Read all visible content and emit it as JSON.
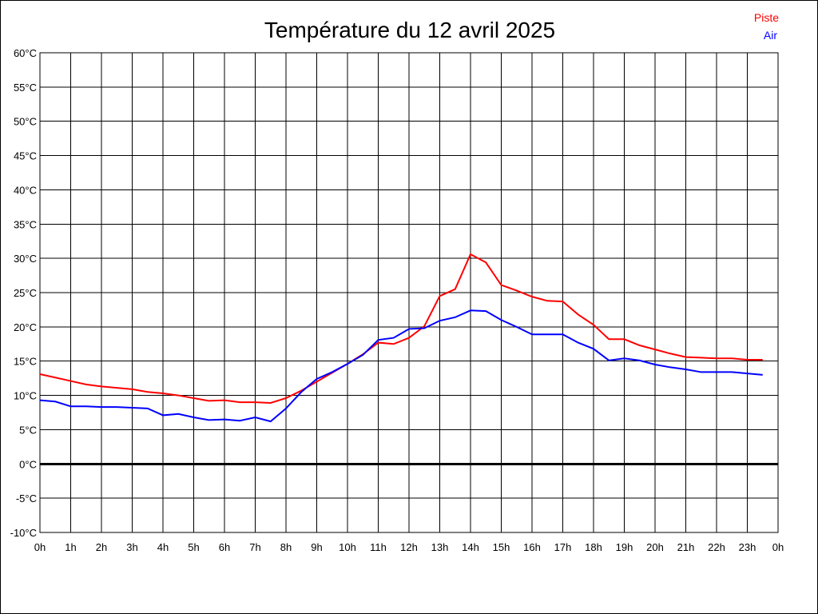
{
  "chart_data": {
    "type": "line",
    "title": "Température du 12 avril 2025",
    "xlabel": "",
    "ylabel": "",
    "x_ticks": [
      "0h",
      "1h",
      "2h",
      "3h",
      "4h",
      "5h",
      "6h",
      "7h",
      "8h",
      "9h",
      "10h",
      "11h",
      "12h",
      "13h",
      "14h",
      "15h",
      "16h",
      "17h",
      "18h",
      "19h",
      "20h",
      "21h",
      "22h",
      "23h",
      "0h"
    ],
    "y_ticks": [
      "60°C",
      "55°C",
      "50°C",
      "45°C",
      "40°C",
      "35°C",
      "30°C",
      "25°C",
      "20°C",
      "15°C",
      "10°C",
      "5°C",
      "0°C",
      "-5°C",
      "-10°C"
    ],
    "xlim": [
      0,
      24
    ],
    "ylim": [
      -10,
      60
    ],
    "grid": true,
    "legend_placement": "top-right",
    "x": [
      0,
      0.5,
      1,
      1.5,
      2,
      2.5,
      3,
      3.5,
      4,
      4.5,
      5,
      5.5,
      6,
      6.5,
      7,
      7.5,
      8,
      8.5,
      9,
      9.5,
      10,
      10.5,
      11,
      11.5,
      12,
      12.5,
      13,
      13.5,
      14,
      14.5,
      15,
      15.5,
      16,
      16.5,
      17,
      17.5,
      18,
      18.5,
      19,
      19.5,
      20,
      20.5,
      21,
      21.5,
      22,
      22.5,
      23,
      23.5
    ],
    "series": [
      {
        "name": "Piste",
        "color": "#ff0000",
        "values": [
          13.1,
          12.6,
          12.1,
          11.6,
          11.3,
          11.1,
          10.9,
          10.5,
          10.3,
          10.0,
          9.6,
          9.2,
          9.3,
          9.0,
          9.0,
          8.9,
          9.6,
          10.7,
          12.0,
          13.3,
          14.6,
          16.0,
          17.7,
          17.5,
          18.4,
          20.1,
          24.5,
          25.5,
          30.6,
          29.4,
          26.1,
          25.3,
          24.4,
          23.8,
          23.7,
          21.8,
          20.3,
          18.2,
          18.2,
          17.3,
          16.7,
          16.1,
          15.6,
          15.5,
          15.4,
          15.4,
          15.2,
          15.2
        ]
      },
      {
        "name": "Air",
        "color": "#0000ff",
        "values": [
          9.3,
          9.1,
          8.4,
          8.4,
          8.3,
          8.3,
          8.2,
          8.1,
          7.1,
          7.3,
          6.8,
          6.4,
          6.5,
          6.3,
          6.8,
          6.2,
          8.1,
          10.5,
          12.4,
          13.4,
          14.6,
          15.9,
          18.1,
          18.4,
          19.7,
          19.8,
          20.9,
          21.4,
          22.4,
          22.3,
          21.0,
          20.0,
          18.9,
          18.9,
          18.9,
          17.7,
          16.8,
          15.1,
          15.4,
          15.1,
          14.5,
          14.1,
          13.8,
          13.4,
          13.4,
          13.4,
          13.2,
          13.0
        ]
      }
    ]
  }
}
